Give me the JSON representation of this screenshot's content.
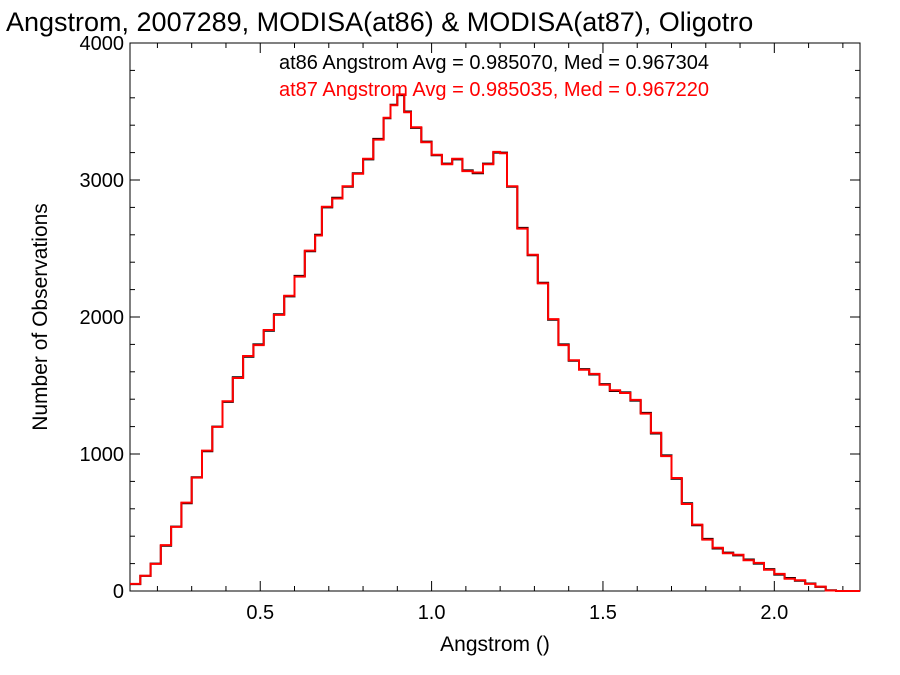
{
  "chart_data": {
    "type": "line",
    "title": "Angstrom, 2007289, MODISA(at86) & MODISA(at87), Oligotro",
    "xlabel": "Angstrom ()",
    "ylabel": "Number of Observations",
    "xlim": [
      0.12,
      2.25
    ],
    "ylim": [
      0,
      4000
    ],
    "x_ticks": [
      0.5,
      1.0,
      1.5,
      2.0
    ],
    "x_tick_labels": [
      "0.5",
      "1.0",
      "1.5",
      "2.0"
    ],
    "y_ticks": [
      0,
      1000,
      2000,
      3000,
      4000
    ],
    "y_tick_labels": [
      "0",
      "1000",
      "2000",
      "3000",
      "4000"
    ],
    "grid": false,
    "legend_position": "top-right",
    "annotations": [
      {
        "text": "at86 Angstrom Avg = 0.985070, Med = 0.967304",
        "color": "#000000"
      },
      {
        "text": "at87 Angstrom Avg = 0.985035, Med = 0.967220",
        "color": "#ff0000"
      }
    ],
    "series": [
      {
        "label": "at86",
        "color": "#000000",
        "step": true,
        "points": [
          [
            0.12,
            50
          ],
          [
            0.15,
            110
          ],
          [
            0.18,
            200
          ],
          [
            0.21,
            330
          ],
          [
            0.24,
            470
          ],
          [
            0.27,
            640
          ],
          [
            0.3,
            830
          ],
          [
            0.33,
            1020
          ],
          [
            0.36,
            1200
          ],
          [
            0.39,
            1380
          ],
          [
            0.42,
            1560
          ],
          [
            0.45,
            1710
          ],
          [
            0.48,
            1800
          ],
          [
            0.51,
            1900
          ],
          [
            0.54,
            2020
          ],
          [
            0.57,
            2150
          ],
          [
            0.6,
            2300
          ],
          [
            0.63,
            2480
          ],
          [
            0.66,
            2600
          ],
          [
            0.68,
            2800
          ],
          [
            0.71,
            2870
          ],
          [
            0.74,
            2950
          ],
          [
            0.77,
            3050
          ],
          [
            0.8,
            3150
          ],
          [
            0.83,
            3300
          ],
          [
            0.86,
            3450
          ],
          [
            0.88,
            3550
          ],
          [
            0.9,
            3620
          ],
          [
            0.92,
            3500
          ],
          [
            0.94,
            3380
          ],
          [
            0.97,
            3280
          ],
          [
            1.0,
            3180
          ],
          [
            1.03,
            3120
          ],
          [
            1.06,
            3150
          ],
          [
            1.09,
            3070
          ],
          [
            1.12,
            3050
          ],
          [
            1.15,
            3120
          ],
          [
            1.18,
            3200
          ],
          [
            1.2,
            3200
          ],
          [
            1.22,
            2950
          ],
          [
            1.25,
            2650
          ],
          [
            1.28,
            2450
          ],
          [
            1.31,
            2250
          ],
          [
            1.34,
            1980
          ],
          [
            1.37,
            1800
          ],
          [
            1.4,
            1680
          ],
          [
            1.43,
            1620
          ],
          [
            1.46,
            1580
          ],
          [
            1.49,
            1510
          ],
          [
            1.52,
            1460
          ],
          [
            1.55,
            1450
          ],
          [
            1.58,
            1390
          ],
          [
            1.61,
            1300
          ],
          [
            1.64,
            1150
          ],
          [
            1.67,
            990
          ],
          [
            1.7,
            820
          ],
          [
            1.73,
            640
          ],
          [
            1.76,
            480
          ],
          [
            1.79,
            380
          ],
          [
            1.82,
            310
          ],
          [
            1.85,
            280
          ],
          [
            1.88,
            260
          ],
          [
            1.91,
            230
          ],
          [
            1.94,
            200
          ],
          [
            1.97,
            160
          ],
          [
            2.0,
            120
          ],
          [
            2.03,
            95
          ],
          [
            2.06,
            75
          ],
          [
            2.09,
            55
          ],
          [
            2.12,
            30
          ],
          [
            2.15,
            5
          ],
          [
            2.18,
            0
          ],
          [
            2.25,
            0
          ]
        ]
      },
      {
        "label": "at87",
        "color": "#ff0000",
        "step": true,
        "points": [
          [
            0.12,
            52
          ],
          [
            0.15,
            112
          ],
          [
            0.18,
            198
          ],
          [
            0.21,
            335
          ],
          [
            0.24,
            468
          ],
          [
            0.27,
            645
          ],
          [
            0.3,
            828
          ],
          [
            0.33,
            1025
          ],
          [
            0.36,
            1198
          ],
          [
            0.39,
            1385
          ],
          [
            0.42,
            1555
          ],
          [
            0.45,
            1715
          ],
          [
            0.48,
            1795
          ],
          [
            0.51,
            1905
          ],
          [
            0.54,
            2015
          ],
          [
            0.57,
            2155
          ],
          [
            0.6,
            2295
          ],
          [
            0.63,
            2485
          ],
          [
            0.66,
            2595
          ],
          [
            0.68,
            2805
          ],
          [
            0.71,
            2865
          ],
          [
            0.74,
            2955
          ],
          [
            0.77,
            3045
          ],
          [
            0.8,
            3155
          ],
          [
            0.83,
            3295
          ],
          [
            0.86,
            3455
          ],
          [
            0.88,
            3545
          ],
          [
            0.9,
            3625
          ],
          [
            0.92,
            3495
          ],
          [
            0.94,
            3385
          ],
          [
            0.97,
            3275
          ],
          [
            1.0,
            3185
          ],
          [
            1.03,
            3115
          ],
          [
            1.06,
            3155
          ],
          [
            1.09,
            3065
          ],
          [
            1.12,
            3055
          ],
          [
            1.15,
            3115
          ],
          [
            1.18,
            3205
          ],
          [
            1.2,
            3195
          ],
          [
            1.22,
            2955
          ],
          [
            1.25,
            2645
          ],
          [
            1.28,
            2455
          ],
          [
            1.31,
            2245
          ],
          [
            1.34,
            1985
          ],
          [
            1.37,
            1795
          ],
          [
            1.4,
            1685
          ],
          [
            1.43,
            1615
          ],
          [
            1.46,
            1585
          ],
          [
            1.49,
            1505
          ],
          [
            1.52,
            1465
          ],
          [
            1.55,
            1445
          ],
          [
            1.58,
            1395
          ],
          [
            1.61,
            1295
          ],
          [
            1.64,
            1155
          ],
          [
            1.67,
            985
          ],
          [
            1.7,
            825
          ],
          [
            1.73,
            635
          ],
          [
            1.76,
            485
          ],
          [
            1.79,
            375
          ],
          [
            1.82,
            315
          ],
          [
            1.85,
            275
          ],
          [
            1.88,
            265
          ],
          [
            1.91,
            225
          ],
          [
            1.94,
            205
          ],
          [
            1.97,
            155
          ],
          [
            2.0,
            125
          ],
          [
            2.03,
            90
          ],
          [
            2.06,
            78
          ],
          [
            2.09,
            52
          ],
          [
            2.12,
            32
          ],
          [
            2.15,
            4
          ],
          [
            2.18,
            0
          ],
          [
            2.25,
            0
          ]
        ]
      }
    ]
  }
}
